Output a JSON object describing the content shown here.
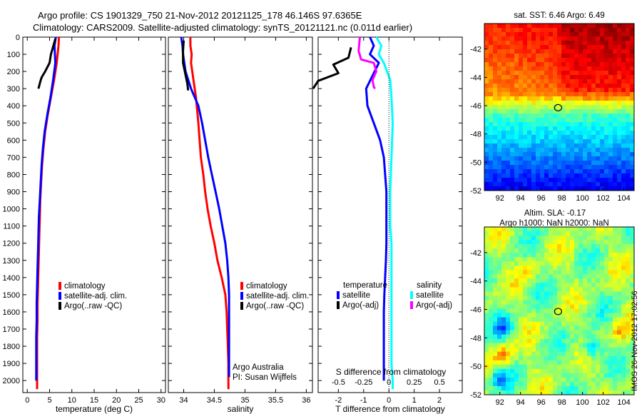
{
  "header": {
    "line1": "Argo profile: CS 1901329_750 21-Nov-2012 20121125_178 46.146S 97.6365E",
    "line2": "Climatology: CARS2009. Satellite-adjusted climatology: synTS_20121121.nc (0.011d earlier)"
  },
  "side_stamp": "IMOS 26-Nov-2012 17:02:56",
  "chart_data": [
    {
      "type": "line",
      "id": "temperature-profile",
      "xlabel": "temperature (deg C)",
      "xlim": [
        -1,
        31
      ],
      "xticks": [
        0,
        5,
        10,
        15,
        20,
        25,
        30
      ],
      "ylim": [
        0,
        2070
      ],
      "yticks": [
        0,
        100,
        200,
        300,
        400,
        500,
        600,
        700,
        800,
        900,
        1000,
        1100,
        1200,
        1300,
        1400,
        1500,
        1600,
        1700,
        1800,
        1900,
        2000
      ],
      "legend": [
        "climatology",
        "satellite-adj. clim.",
        "Argo(..raw -QC)"
      ],
      "legend_placement": "lower-center",
      "series": [
        {
          "name": "climatology",
          "color": "#ff0000",
          "x": [
            7.1,
            7.0,
            6.6,
            6.0,
            5.3,
            4.6,
            4.0,
            3.6,
            3.3,
            3.1,
            2.9,
            2.8,
            2.7,
            2.6,
            2.5,
            2.4,
            2.3,
            2.3,
            2.2,
            2.2,
            2.2,
            2.2
          ],
          "y": [
            0,
            50,
            150,
            250,
            350,
            450,
            550,
            650,
            750,
            850,
            950,
            1050,
            1150,
            1250,
            1350,
            1450,
            1550,
            1650,
            1750,
            1850,
            1950,
            2050
          ]
        },
        {
          "name": "satellite-adj. clim.",
          "color": "#0000ff",
          "x": [
            6.4,
            6.1,
            6.3,
            5.8,
            5.2,
            4.5,
            3.9,
            3.5,
            3.2,
            3.0,
            2.8,
            2.6,
            2.5,
            2.4,
            2.3,
            2.2,
            2.1,
            2.1,
            2.0,
            2.0,
            2.0,
            2.0
          ],
          "y": [
            0,
            50,
            150,
            250,
            350,
            450,
            550,
            650,
            750,
            850,
            950,
            1050,
            1150,
            1250,
            1350,
            1450,
            1550,
            1650,
            1750,
            1850,
            1950,
            2000
          ]
        },
        {
          "name": "Argo(..raw -QC)",
          "color": "#000000",
          "x": [
            6.3,
            5.3,
            5.0,
            4.0,
            3.2,
            2.9,
            2.5
          ],
          "y": [
            10,
            100,
            150,
            200,
            235,
            260,
            300
          ]
        }
      ]
    },
    {
      "type": "line",
      "id": "salinity-profile",
      "xlabel": "salinity",
      "xlim": [
        33.75,
        36.1
      ],
      "xticks": [
        34,
        34.5,
        35,
        35.5,
        36
      ],
      "ylim": [
        0,
        2070
      ],
      "legend": [
        "climatology",
        "satellite-adj. clim.",
        "Argo(..raw -QC)"
      ],
      "legend_placement": "lower-right",
      "annotation": [
        "Argo Australia",
        "PI: Susan Wijffels"
      ],
      "series": [
        {
          "name": "climatology",
          "color": "#ff0000",
          "x": [
            34.11,
            34.11,
            34.13,
            34.12,
            34.16,
            34.2,
            34.24,
            34.26,
            34.28,
            34.32,
            34.35,
            34.39,
            34.44,
            34.5,
            34.55,
            34.62,
            34.68,
            34.7,
            34.71,
            34.72,
            34.73,
            34.73,
            34.73
          ],
          "y": [
            0,
            50,
            100,
            150,
            250,
            350,
            500,
            600,
            700,
            800,
            900,
            1000,
            1100,
            1200,
            1300,
            1400,
            1500,
            1600,
            1700,
            1800,
            1900,
            2000,
            2050
          ]
        },
        {
          "name": "satellite-adj. clim.",
          "color": "#0000ff",
          "x": [
            33.96,
            33.98,
            33.99,
            34.03,
            34.12,
            34.24,
            34.3,
            34.35,
            34.4,
            34.46,
            34.52,
            34.58,
            34.63,
            34.68,
            34.71,
            34.73,
            34.74,
            34.74,
            34.74,
            34.74,
            34.74,
            34.74
          ],
          "y": [
            0,
            50,
            100,
            200,
            300,
            400,
            500,
            600,
            700,
            800,
            900,
            1000,
            1100,
            1200,
            1300,
            1400,
            1500,
            1600,
            1700,
            1800,
            1900,
            1980
          ]
        },
        {
          "name": "Argo(..raw -QC)",
          "color": "#000000",
          "x": [
            34.0,
            33.99,
            33.99,
            34.03,
            34.06,
            34.07,
            34.07
          ],
          "y": [
            20,
            80,
            150,
            220,
            270,
            300,
            310
          ]
        }
      ]
    },
    {
      "type": "line",
      "id": "difference-from-climatology",
      "xlabel": "T difference from climatology",
      "xlim": [
        -2.8,
        2.9
      ],
      "xticks": [
        -2,
        -1,
        0,
        1,
        2
      ],
      "s_label": "S difference from climatology",
      "s_ticks": [
        "-0.5",
        "-0.25",
        "0",
        "0.25",
        "0.5"
      ],
      "s_tick_positions_T": [
        -2,
        -1,
        0,
        1,
        2
      ],
      "ylim": [
        0,
        2070
      ],
      "legend": {
        "temperature_title": "temperature",
        "salinity_title": "salinity",
        "entries": [
          "satellite",
          "Argo(-adj)",
          "satellite",
          "Argo(-adj)"
        ]
      },
      "legend_placement": "lower-center",
      "series": [
        {
          "name": "temperature satellite",
          "color": "#0000ff",
          "x": [
            -0.75,
            -0.6,
            -0.75,
            -0.4,
            -0.9,
            -0.85,
            -0.6,
            -0.35,
            -0.2,
            -0.15,
            -0.1,
            -0.1,
            -0.1,
            -0.1,
            -0.12,
            -0.15,
            -0.18,
            -0.2,
            -0.2,
            -0.2,
            -0.2
          ],
          "y": [
            0,
            50,
            100,
            150,
            300,
            400,
            500,
            600,
            700,
            800,
            900,
            1000,
            1100,
            1200,
            1300,
            1400,
            1500,
            1600,
            1800,
            1900,
            2000
          ]
        },
        {
          "name": "temperature Argo(-adj)",
          "color": "#000000",
          "x": [
            -1.5,
            -1.6,
            -2.2,
            -2.0,
            -2.8,
            -3.0
          ],
          "y": [
            60,
            120,
            160,
            210,
            255,
            300
          ]
        },
        {
          "name": "salinity satellite",
          "color": "#00ffff",
          "x": [
            -0.5,
            -0.3,
            -0.4,
            -0.2,
            0.05,
            0.1,
            0.15,
            0.1,
            0.05,
            0.05,
            0.1,
            0.1,
            0.1,
            0.1,
            0.1,
            0.1,
            0.1,
            0.1,
            0.15,
            0.15
          ],
          "y": [
            0,
            50,
            100,
            150,
            250,
            350,
            500,
            700,
            900,
            1100,
            1200,
            1300,
            1400,
            1500,
            1600,
            1700,
            1800,
            1900,
            2000,
            2050
          ]
        },
        {
          "name": "salinity Argo(-adj)",
          "color": "#ff00ff",
          "x": [
            -1.15,
            -1.2,
            -1.1,
            -0.6,
            -0.5,
            -0.65,
            -0.6,
            -0.55
          ],
          "y": [
            0,
            80,
            130,
            150,
            200,
            250,
            290,
            300
          ]
        }
      ]
    },
    {
      "type": "heatmap",
      "id": "sst-map",
      "title": "sat. SST: 6.46  Argo: 6.49",
      "xticks": [
        92,
        94,
        96,
        98,
        100,
        102,
        104
      ],
      "xlim": [
        90.5,
        105
      ],
      "yticks": [
        -42,
        -44,
        -46,
        -48,
        -50,
        -52
      ],
      "ylim": [
        -52,
        -40.2
      ],
      "marker": {
        "lon": 97.6365,
        "lat": -46.146
      },
      "colormap": "jet"
    },
    {
      "type": "heatmap",
      "id": "sla-map",
      "title": "Altim. SLA: -0.17",
      "subtitle": "Argo h1000: NaN h2000: NaN",
      "xticks": [
        92,
        94,
        96,
        98,
        100,
        102,
        104
      ],
      "xlim": [
        90.5,
        105
      ],
      "yticks": [
        -42,
        -44,
        -46,
        -48,
        -50,
        -52
      ],
      "ylim": [
        -52,
        -40.2
      ],
      "marker": {
        "lon": 97.6365,
        "lat": -46.146
      },
      "colormap": "jet"
    }
  ]
}
